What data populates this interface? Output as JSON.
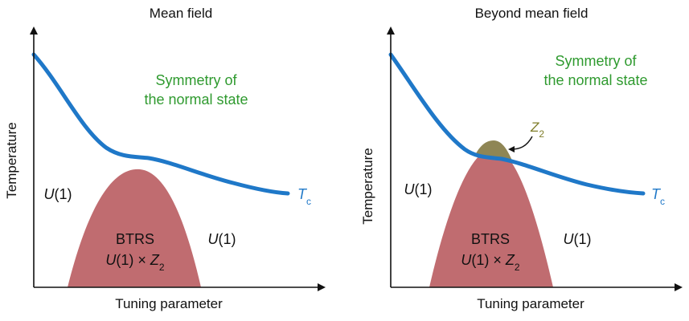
{
  "panels": [
    {
      "title": "Mean field",
      "xlabel": "Tuning parameter",
      "ylabel": "Temperature",
      "symmetry_line1": "Symmetry of",
      "symmetry_line2": "the normal state",
      "left_region": "U(1)",
      "right_region": "U(1)",
      "dome_line1": "BTRS",
      "dome_line2": "U(1) × Z2",
      "curve_label": "Tc"
    },
    {
      "title": "Beyond mean field",
      "xlabel": "Tuning parameter",
      "ylabel": "Temperature",
      "symmetry_line1": "Symmetry of",
      "symmetry_line2": "the normal state",
      "left_region": "U(1)",
      "right_region": "U(1)",
      "dome_line1": "BTRS",
      "dome_line2": "U(1) × Z2",
      "curve_label": "Tc",
      "z2_label": "Z2"
    }
  ],
  "colors": {
    "curve": "#1f78c8",
    "dome": "#c06c70",
    "z2_cap": "#8f8655",
    "symmetry_text": "#2f9a2f",
    "axis": "#111111"
  }
}
